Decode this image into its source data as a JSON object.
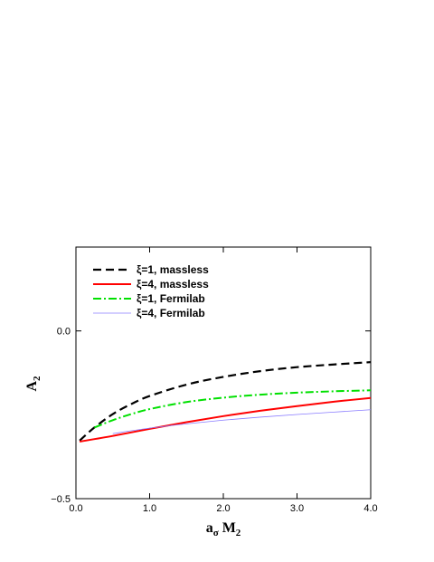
{
  "chart_data": {
    "type": "line",
    "xlabel": {
      "main": "a",
      "sub1": "σ",
      "mid": " M",
      "sub2": "2"
    },
    "ylabel": {
      "main": "A",
      "sub": "2"
    },
    "xlim": [
      0.0,
      4.0
    ],
    "ylim": [
      -0.5,
      0.25
    ],
    "x_ticks": [
      0.0,
      1.0,
      2.0,
      3.0,
      4.0
    ],
    "x_tick_labels": [
      "0.0",
      "1.0",
      "2.0",
      "3.0",
      "4.0"
    ],
    "y_ticks": [
      -0.5,
      0.0
    ],
    "y_tick_labels": [
      "−0.5",
      "0.0"
    ],
    "grid": false,
    "legend_position": "top-left",
    "series": [
      {
        "name": "ξ=1, massless",
        "color": "#000000",
        "style": "dashed",
        "x": [
          0.05,
          0.25,
          0.5,
          0.75,
          1.0,
          1.5,
          2.0,
          2.5,
          3.0,
          3.5,
          4.0
        ],
        "y": [
          -0.327,
          -0.288,
          -0.248,
          -0.218,
          -0.194,
          -0.16,
          -0.137,
          -0.12,
          -0.108,
          -0.1,
          -0.093
        ]
      },
      {
        "name": "ξ=4, massless",
        "color": "#ff0000",
        "style": "solid",
        "x": [
          0.05,
          0.5,
          1.0,
          1.5,
          2.0,
          2.5,
          3.0,
          3.5,
          4.0
        ],
        "y": [
          -0.33,
          -0.313,
          -0.292,
          -0.272,
          -0.254,
          -0.238,
          -0.224,
          -0.211,
          -0.2
        ]
      },
      {
        "name": "ξ=1, Fermilab",
        "color": "#00e000",
        "style": "dashdot",
        "x": [
          0.25,
          0.5,
          0.75,
          1.0,
          1.5,
          2.0,
          2.5,
          3.0,
          3.5,
          4.0
        ],
        "y": [
          -0.288,
          -0.266,
          -0.248,
          -0.233,
          -0.212,
          -0.199,
          -0.19,
          -0.184,
          -0.18,
          -0.177
        ]
      },
      {
        "name": "ξ=4, Fermilab",
        "color": "#8a7cff",
        "style": "thin",
        "x": [
          0.5,
          1.0,
          1.5,
          2.0,
          2.5,
          3.0,
          3.5,
          4.0
        ],
        "y": [
          -0.306,
          -0.29,
          -0.277,
          -0.266,
          -0.257,
          -0.249,
          -0.242,
          -0.235
        ]
      }
    ]
  }
}
